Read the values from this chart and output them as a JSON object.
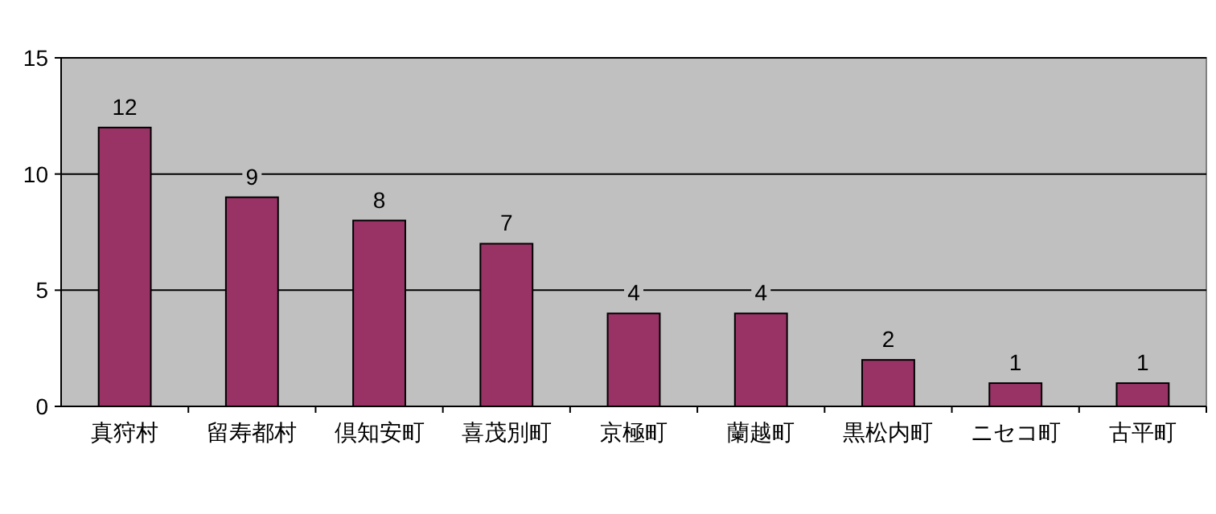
{
  "chart_data": {
    "type": "bar",
    "categories": [
      "真狩村",
      "留寿都村",
      "倶知安町",
      "喜茂別町",
      "京極町",
      "蘭越町",
      "黒松内町",
      "ニセコ町",
      "古平町"
    ],
    "values": [
      12,
      9,
      8,
      7,
      4,
      4,
      2,
      1,
      1
    ],
    "color": "#993366",
    "ylim": [
      0,
      15
    ],
    "yticks": [
      0,
      5,
      10,
      15
    ],
    "grid": "y",
    "data_labels": true
  }
}
